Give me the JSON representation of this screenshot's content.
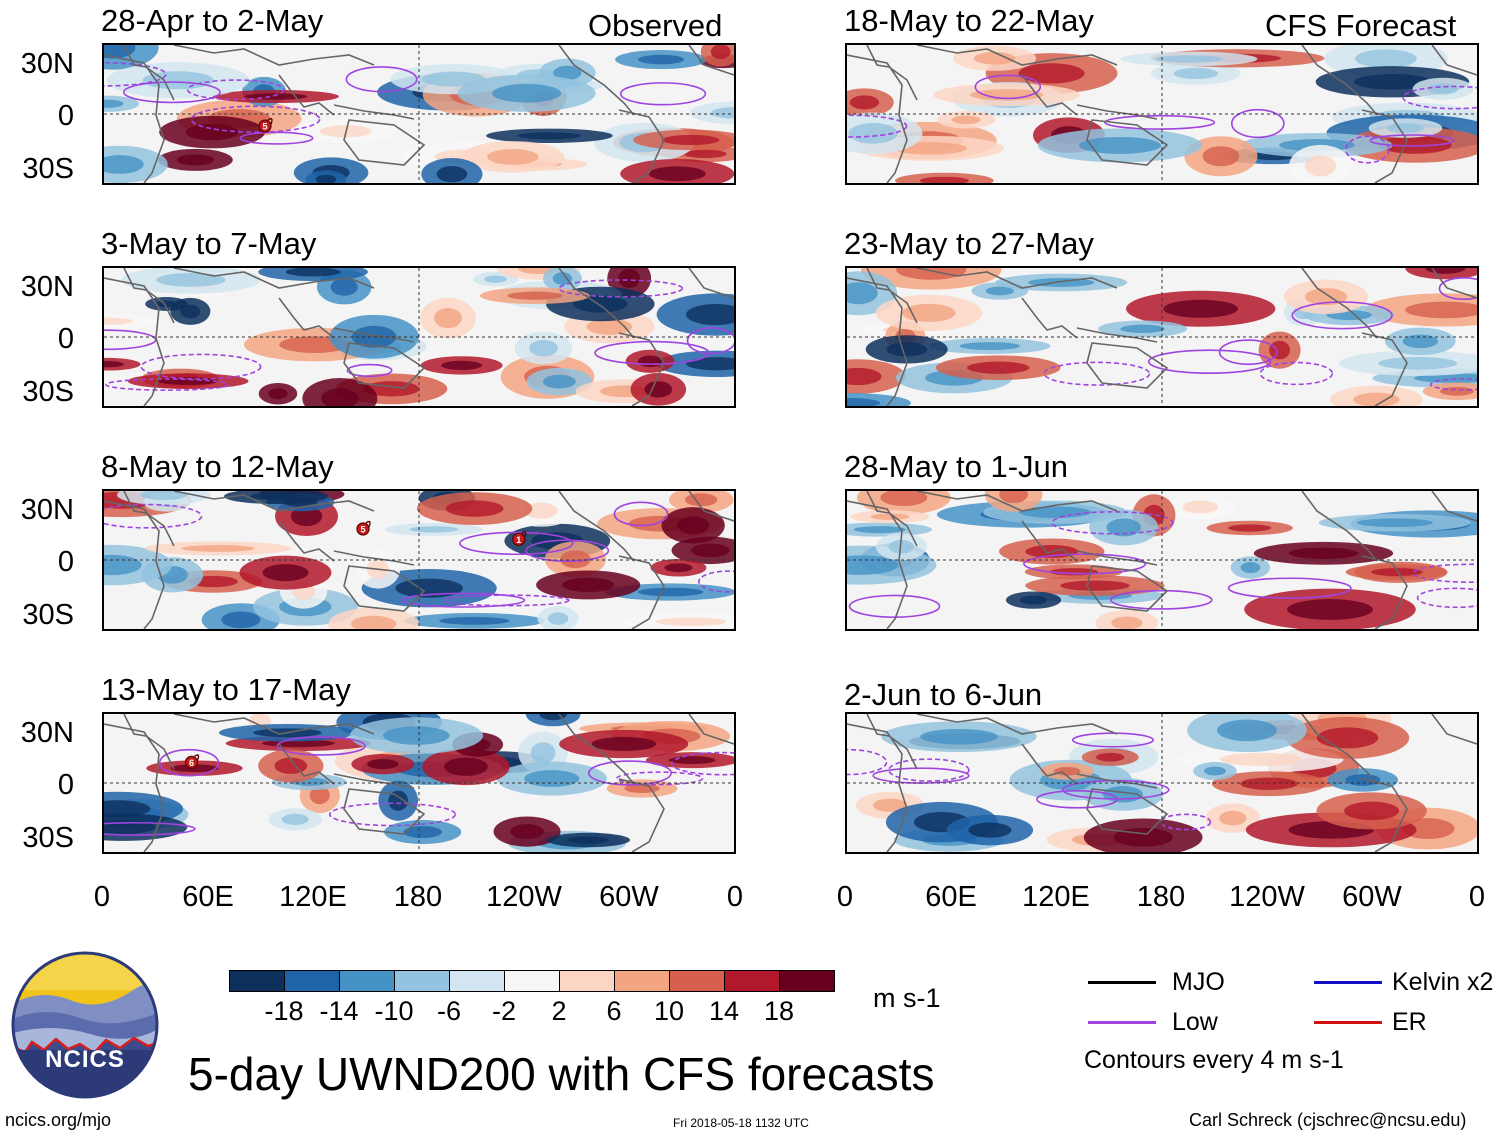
{
  "column_titles": {
    "left": "Observed",
    "right": "CFS Forecast"
  },
  "periods": {
    "left": [
      "28-Apr to 2-May",
      "3-May to 7-May",
      "8-May to 12-May",
      "13-May to 17-May"
    ],
    "right": [
      "18-May to 22-May",
      "23-May to 27-May",
      "28-May to 1-Jun",
      "2-Jun to 6-Jun"
    ]
  },
  "lat_labels": [
    "30N",
    "0",
    "30S"
  ],
  "lon_labels": [
    "0",
    "60E",
    "120E",
    "180",
    "120W",
    "60W",
    "0"
  ],
  "colorbar": {
    "colors": [
      "#0d2f5c",
      "#1f64a8",
      "#4592c6",
      "#93c3de",
      "#d2e5f0",
      "#f7f7f7",
      "#fbd6c4",
      "#f3a481",
      "#d6604d",
      "#b2182b",
      "#67001f"
    ],
    "ticks": [
      "-18",
      "-14",
      "-10",
      "-6",
      "-2",
      "2",
      "6",
      "10",
      "14",
      "18"
    ],
    "units": "m s-1"
  },
  "legend": {
    "mjo": {
      "label": "MJO",
      "color": "#000000"
    },
    "low": {
      "label": "Low",
      "color": "#a044e0"
    },
    "kelvin": {
      "label": "Kelvin x2",
      "color": "#1010c0"
    },
    "er": {
      "label": "ER",
      "color": "#d01010"
    },
    "contour_note": "Contours every 4 m s-1"
  },
  "logo_text": "NCICS",
  "main_title": "5-day UWND200 with CFS forecasts",
  "footer": {
    "url": "ncics.org/mjo",
    "timestamp": "Fri 2018-05-18 1132 UTC",
    "author": "Carl Schreck (cjschrec@ncsu.edu)"
  },
  "storm_markers": [
    {
      "panel": "left-0",
      "label": "5",
      "lon": 92,
      "lat": -7
    },
    {
      "panel": "left-2",
      "label": "5",
      "lon": 148,
      "lat": 18
    },
    {
      "panel": "left-2",
      "label": "1",
      "lon": 237,
      "lat": 12
    },
    {
      "panel": "left-3",
      "label": "6",
      "lon": 50,
      "lat": 12
    }
  ]
}
